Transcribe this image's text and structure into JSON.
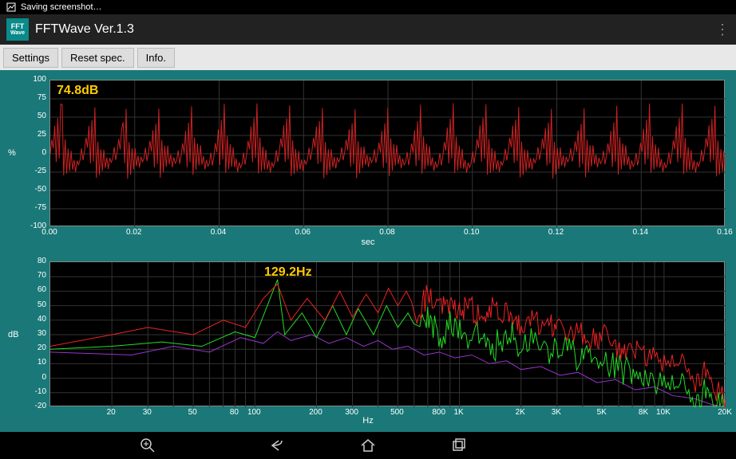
{
  "status_text": "Saving screenshot…",
  "app": {
    "title": "FFTWave Ver.1.3",
    "icon_top": "FFT",
    "icon_bottom": "Wave"
  },
  "toolbar": {
    "settings": "Settings",
    "reset": "Reset spec.",
    "info": "Info."
  },
  "colors": {
    "bg_teal": "#1a7878",
    "plot_bg": "#000000",
    "grid": "#333333",
    "axis_text": "#ffffff",
    "annotation": "#ffcc00",
    "wave": "#cc2222",
    "spec_red": "#ee2222",
    "spec_green": "#22dd22",
    "spec_purple": "#9933cc"
  },
  "chart1": {
    "type": "line",
    "ylabel": "%",
    "xlabel": "sec",
    "annotation": "74.8dB",
    "ylim": [
      -100,
      100
    ],
    "yticks": [
      -100,
      -75,
      -50,
      -25,
      0,
      25,
      50,
      75,
      100
    ],
    "xlim": [
      0.0,
      0.16
    ],
    "xticks": [
      "0.00",
      "0.02",
      "0.04",
      "0.06",
      "0.08",
      "0.10",
      "0.12",
      "0.14",
      "0.16"
    ],
    "grid_y": [
      -75,
      -50,
      -25,
      0,
      25,
      50,
      75
    ],
    "grid_x": [
      0.02,
      0.04,
      0.06,
      0.08,
      0.1,
      0.12,
      0.14
    ],
    "period": 0.00775,
    "cycle": [
      0,
      18,
      5,
      35,
      -15,
      45,
      -10,
      65,
      -30,
      20,
      -25,
      10,
      -20,
      8,
      -18,
      -5,
      -22,
      -8,
      -15,
      -10,
      5,
      -12
    ]
  },
  "chart2": {
    "type": "line-logx",
    "ylabel": "dB",
    "xlabel": "Hz",
    "annotation": "129.2Hz",
    "ylim": [
      -20,
      80
    ],
    "yticks": [
      -20,
      -10,
      0,
      10,
      20,
      30,
      40,
      50,
      60,
      70,
      80
    ],
    "xlim": [
      10,
      20000
    ],
    "xticks": [
      {
        "v": 20,
        "l": "20"
      },
      {
        "v": 30,
        "l": "30"
      },
      {
        "v": 50,
        "l": "50"
      },
      {
        "v": 80,
        "l": "80"
      },
      {
        "v": 100,
        "l": "100"
      },
      {
        "v": 200,
        "l": "200"
      },
      {
        "v": 300,
        "l": "300"
      },
      {
        "v": 500,
        "l": "500"
      },
      {
        "v": 800,
        "l": "800"
      },
      {
        "v": 1000,
        "l": "1K"
      },
      {
        "v": 2000,
        "l": "2K"
      },
      {
        "v": 3000,
        "l": "3K"
      },
      {
        "v": 5000,
        "l": "5K"
      },
      {
        "v": 8000,
        "l": "8K"
      },
      {
        "v": 10000,
        "l": "10K"
      },
      {
        "v": 20000,
        "l": "20K"
      }
    ],
    "grid_y": [
      -10,
      0,
      10,
      20,
      30,
      40,
      50,
      60,
      70
    ],
    "grid_x": [
      20,
      30,
      40,
      50,
      60,
      70,
      80,
      90,
      100,
      200,
      300,
      400,
      500,
      600,
      700,
      800,
      900,
      1000,
      2000,
      3000,
      4000,
      5000,
      6000,
      7000,
      8000,
      9000,
      10000,
      20000
    ],
    "series_red": [
      [
        10,
        22
      ],
      [
        20,
        30
      ],
      [
        30,
        35
      ],
      [
        50,
        30
      ],
      [
        70,
        40
      ],
      [
        90,
        35
      ],
      [
        110,
        55
      ],
      [
        129,
        65
      ],
      [
        150,
        40
      ],
      [
        180,
        55
      ],
      [
        220,
        40
      ],
      [
        260,
        60
      ],
      [
        300,
        42
      ],
      [
        350,
        58
      ],
      [
        400,
        45
      ],
      [
        450,
        62
      ],
      [
        500,
        50
      ],
      [
        550,
        60
      ],
      [
        620,
        45
      ],
      [
        700,
        58
      ],
      [
        800,
        46
      ],
      [
        900,
        55
      ],
      [
        1000,
        45
      ],
      [
        1100,
        52
      ],
      [
        1250,
        42
      ],
      [
        1400,
        48
      ],
      [
        1600,
        40
      ],
      [
        1800,
        45
      ],
      [
        2000,
        38
      ],
      [
        2300,
        42
      ],
      [
        2700,
        35
      ],
      [
        3000,
        38
      ],
      [
        3500,
        30
      ],
      [
        4000,
        32
      ],
      [
        4600,
        25
      ],
      [
        5000,
        28
      ],
      [
        5800,
        20
      ],
      [
        6500,
        22
      ],
      [
        7500,
        15
      ],
      [
        8500,
        18
      ],
      [
        10000,
        8
      ],
      [
        12000,
        10
      ],
      [
        14000,
        0
      ],
      [
        16000,
        2
      ],
      [
        18000,
        -8
      ],
      [
        20000,
        -15
      ]
    ],
    "series_green": [
      [
        10,
        20
      ],
      [
        20,
        22
      ],
      [
        35,
        25
      ],
      [
        55,
        22
      ],
      [
        80,
        32
      ],
      [
        100,
        28
      ],
      [
        129,
        68
      ],
      [
        140,
        30
      ],
      [
        170,
        45
      ],
      [
        200,
        28
      ],
      [
        240,
        50
      ],
      [
        280,
        30
      ],
      [
        320,
        48
      ],
      [
        380,
        30
      ],
      [
        440,
        50
      ],
      [
        500,
        35
      ],
      [
        560,
        45
      ],
      [
        640,
        30
      ],
      [
        720,
        42
      ],
      [
        820,
        28
      ],
      [
        950,
        40
      ],
      [
        1100,
        25
      ],
      [
        1300,
        35
      ],
      [
        1500,
        22
      ],
      [
        1750,
        30
      ],
      [
        2000,
        20
      ],
      [
        2400,
        25
      ],
      [
        2800,
        15
      ],
      [
        3300,
        20
      ],
      [
        3900,
        10
      ],
      [
        4500,
        15
      ],
      [
        5300,
        5
      ],
      [
        6200,
        8
      ],
      [
        7200,
        0
      ],
      [
        8400,
        2
      ],
      [
        10000,
        -8
      ],
      [
        12000,
        -5
      ],
      [
        14000,
        -15
      ],
      [
        16000,
        -12
      ],
      [
        18000,
        -18
      ],
      [
        20000,
        -20
      ]
    ],
    "series_purple": [
      [
        10,
        18
      ],
      [
        25,
        16
      ],
      [
        40,
        22
      ],
      [
        60,
        18
      ],
      [
        85,
        28
      ],
      [
        110,
        24
      ],
      [
        129,
        32
      ],
      [
        150,
        26
      ],
      [
        190,
        30
      ],
      [
        230,
        24
      ],
      [
        280,
        28
      ],
      [
        340,
        22
      ],
      [
        400,
        26
      ],
      [
        470,
        20
      ],
      [
        560,
        22
      ],
      [
        670,
        16
      ],
      [
        800,
        18
      ],
      [
        950,
        14
      ],
      [
        1150,
        16
      ],
      [
        1400,
        10
      ],
      [
        1700,
        12
      ],
      [
        2000,
        6
      ],
      [
        2500,
        8
      ],
      [
        3100,
        2
      ],
      [
        3800,
        4
      ],
      [
        4700,
        -3
      ],
      [
        5800,
        -1
      ],
      [
        7200,
        -8
      ],
      [
        9000,
        -6
      ],
      [
        11000,
        -12
      ],
      [
        14000,
        -14
      ],
      [
        17000,
        -18
      ],
      [
        20000,
        -20
      ]
    ]
  }
}
